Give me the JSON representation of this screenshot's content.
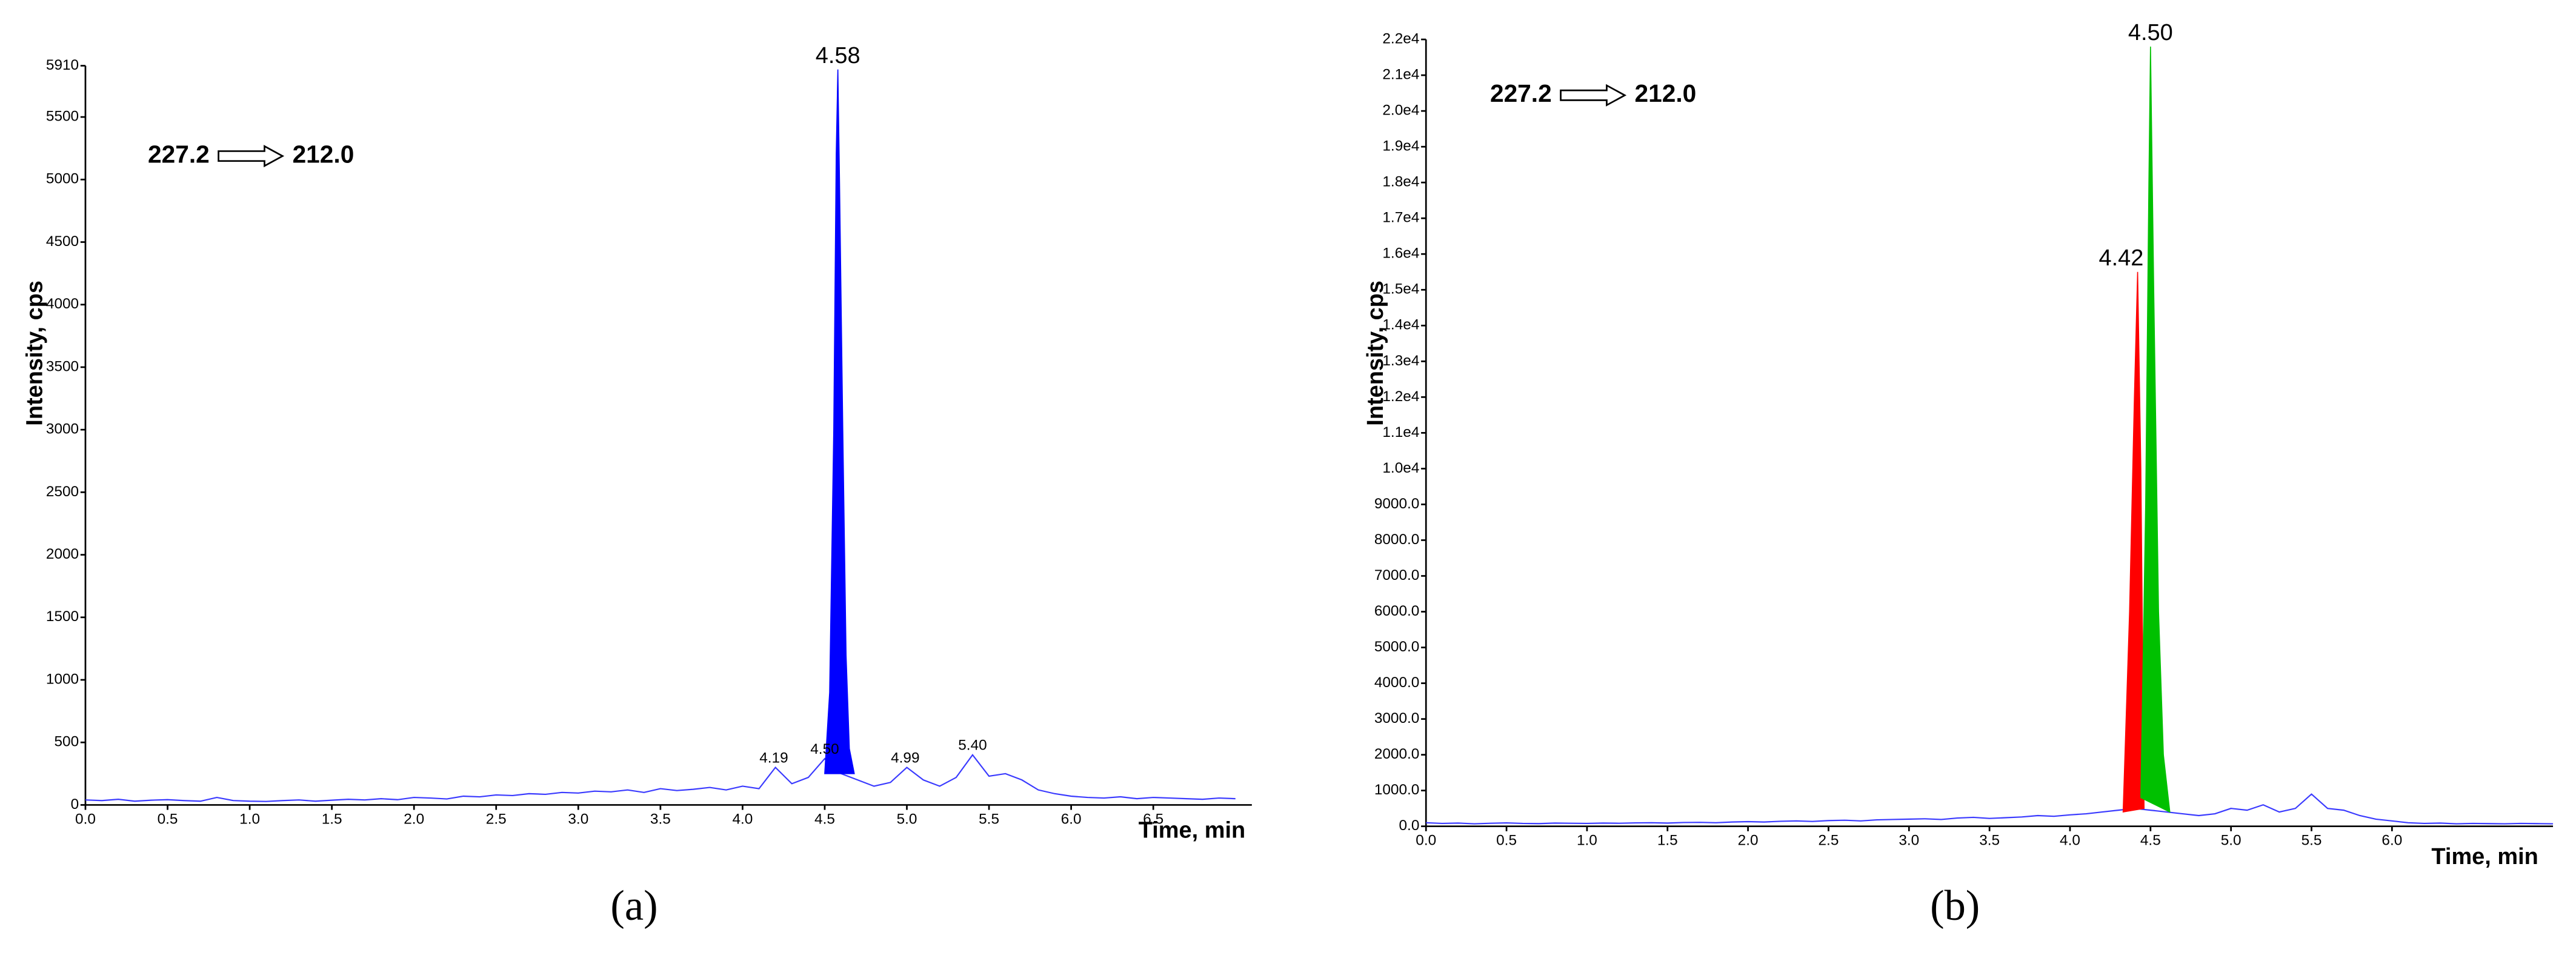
{
  "chart_data": [
    {
      "type": "line",
      "title": "(a)",
      "xlabel": "Time, min",
      "ylabel": "Intensity, cps",
      "transition": [
        "227.2",
        "212.0"
      ],
      "xlim": [
        0,
        7.1
      ],
      "ylim": [
        0,
        5910
      ],
      "xticks": [
        {
          "value": 0,
          "label": "0.0"
        },
        0.5,
        {
          "value": 1,
          "label": "1.0"
        },
        1.5,
        {
          "value": 2,
          "label": "2.0"
        },
        2.5,
        {
          "value": 3,
          "label": "3.0"
        },
        3.5,
        {
          "value": 4,
          "label": "4.0"
        },
        4.5,
        {
          "value": 5,
          "label": "5.0"
        },
        5.5,
        {
          "value": 6,
          "label": "6.0"
        },
        6.5
      ],
      "yticks": [
        0,
        500,
        1000,
        1500,
        2000,
        2500,
        3000,
        3500,
        4000,
        4500,
        5000,
        5500,
        5910
      ],
      "series": [
        {
          "color": "#3a3aff",
          "x": [
            0.0,
            0.1,
            0.2,
            0.3,
            0.4,
            0.5,
            0.6,
            0.7,
            0.8,
            0.9,
            1.0,
            1.1,
            1.2,
            1.3,
            1.4,
            1.5,
            1.6,
            1.7,
            1.8,
            1.9,
            2.0,
            2.1,
            2.2,
            2.3,
            2.4,
            2.5,
            2.6,
            2.7,
            2.8,
            2.9,
            3.0,
            3.1,
            3.2,
            3.3,
            3.4,
            3.5,
            3.6,
            3.7,
            3.8,
            3.9,
            4.0,
            4.1,
            4.2,
            4.3,
            4.4,
            4.5,
            4.6,
            4.7,
            4.8,
            4.9,
            5.0,
            5.1,
            5.2,
            5.3,
            5.4,
            5.5,
            5.6,
            5.7,
            5.8,
            5.9,
            6.0,
            6.1,
            6.2,
            6.3,
            6.4,
            6.5,
            6.6,
            6.7,
            6.8,
            6.9,
            7.0
          ],
          "values": [
            40,
            35,
            45,
            30,
            38,
            42,
            35,
            30,
            60,
            35,
            30,
            28,
            35,
            40,
            30,
            38,
            45,
            40,
            50,
            42,
            60,
            55,
            48,
            70,
            65,
            80,
            75,
            90,
            85,
            100,
            95,
            110,
            105,
            120,
            100,
            130,
            115,
            125,
            140,
            120,
            150,
            130,
            300,
            170,
            220,
            370,
            250,
            200,
            150,
            180,
            300,
            200,
            150,
            220,
            400,
            230,
            250,
            200,
            120,
            90,
            70,
            60,
            55,
            65,
            50,
            60,
            55,
            50,
            45,
            55,
            50
          ]
        },
        {
          "color": "#0000ff",
          "fill": true,
          "x": [
            4.5,
            4.53,
            4.555,
            4.57,
            4.58,
            4.59,
            4.61,
            4.63,
            4.65,
            4.68
          ],
          "values": [
            250,
            900,
            3000,
            5200,
            5880,
            5000,
            3000,
            1200,
            450,
            250
          ]
        }
      ],
      "annotations": [
        {
          "text": "4.58",
          "x": 4.58,
          "y": 5880
        },
        {
          "text": "4.19",
          "x": 4.19,
          "y": 300
        },
        {
          "text": "4.50",
          "x": 4.5,
          "y": 370
        },
        {
          "text": "4.99",
          "x": 4.99,
          "y": 300
        },
        {
          "text": "5.40",
          "x": 5.4,
          "y": 400
        }
      ]
    },
    {
      "type": "line",
      "title": "(b)",
      "xlabel": "Time, min",
      "ylabel": "Intensity, cps",
      "transition": [
        "227.2",
        "212.0"
      ],
      "xlim": [
        0,
        7.0
      ],
      "ylim": [
        0,
        22000
      ],
      "xticks": [
        {
          "value": 0,
          "label": "0.0"
        },
        0.5,
        {
          "value": 1,
          "label": "1.0"
        },
        1.5,
        {
          "value": 2,
          "label": "2.0"
        },
        2.5,
        {
          "value": 3,
          "label": "3.0"
        },
        3.5,
        {
          "value": 4,
          "label": "4.0"
        },
        4.5,
        {
          "value": 5,
          "label": "5.0"
        },
        5.5,
        {
          "value": 6,
          "label": "6.0"
        }
      ],
      "yticks": [
        {
          "value": 0,
          "label": "0.0"
        },
        {
          "value": 1000,
          "label": "1000.0"
        },
        {
          "value": 2000,
          "label": "2000.0"
        },
        {
          "value": 3000,
          "label": "3000.0"
        },
        {
          "value": 4000,
          "label": "4000.0"
        },
        {
          "value": 5000,
          "label": "5000.0"
        },
        {
          "value": 6000,
          "label": "6000.0"
        },
        {
          "value": 7000,
          "label": "7000.0"
        },
        {
          "value": 8000,
          "label": "8000.0"
        },
        {
          "value": 9000,
          "label": "9000.0"
        },
        {
          "value": 10000,
          "label": "1.0e4"
        },
        {
          "value": 11000,
          "label": "1.1e4"
        },
        {
          "value": 12000,
          "label": "1.2e4"
        },
        {
          "value": 13000,
          "label": "1.3e4"
        },
        {
          "value": 14000,
          "label": "1.4e4"
        },
        {
          "value": 15000,
          "label": "1.5e4"
        },
        {
          "value": 16000,
          "label": "1.6e4"
        },
        {
          "value": 17000,
          "label": "1.7e4"
        },
        {
          "value": 18000,
          "label": "1.8e4"
        },
        {
          "value": 19000,
          "label": "1.9e4"
        },
        {
          "value": 20000,
          "label": "2.0e4"
        },
        {
          "value": 21000,
          "label": "2.1e4"
        },
        {
          "value": 22000,
          "label": "2.2e4"
        }
      ],
      "series": [
        {
          "color": "#3a3aff",
          "x": [
            0.0,
            0.1,
            0.2,
            0.3,
            0.4,
            0.5,
            0.6,
            0.7,
            0.8,
            0.9,
            1.0,
            1.1,
            1.2,
            1.3,
            1.4,
            1.5,
            1.6,
            1.7,
            1.8,
            1.9,
            2.0,
            2.1,
            2.2,
            2.3,
            2.4,
            2.5,
            2.6,
            2.7,
            2.8,
            2.9,
            3.0,
            3.1,
            3.2,
            3.3,
            3.4,
            3.5,
            3.6,
            3.7,
            3.8,
            3.9,
            4.0,
            4.1,
            4.2,
            4.3,
            4.4,
            4.5,
            4.6,
            4.7,
            4.8,
            4.9,
            5.0,
            5.1,
            5.2,
            5.3,
            5.4,
            5.5,
            5.6,
            5.7,
            5.8,
            5.9,
            6.0,
            6.1,
            6.2,
            6.3,
            6.4,
            6.5,
            6.6,
            6.7,
            6.8,
            6.9,
            7.0
          ],
          "values": [
            100,
            80,
            90,
            70,
            85,
            95,
            80,
            75,
            90,
            85,
            80,
            90,
            85,
            95,
            100,
            90,
            105,
            110,
            100,
            120,
            130,
            120,
            140,
            150,
            135,
            160,
            170,
            150,
            180,
            190,
            200,
            210,
            190,
            230,
            250,
            220,
            240,
            260,
            300,
            280,
            320,
            350,
            400,
            450,
            500,
            450,
            400,
            350,
            300,
            350,
            500,
            450,
            600,
            400,
            500,
            900,
            500,
            450,
            300,
            200,
            150,
            100,
            80,
            90,
            70,
            80,
            75,
            70,
            80,
            75,
            70
          ]
        },
        {
          "color": "#ff0000",
          "fill": true,
          "x": [
            4.33,
            4.37,
            4.4,
            4.42,
            4.44,
            4.46
          ],
          "values": [
            400,
            6000,
            12000,
            15500,
            10000,
            500
          ]
        },
        {
          "color": "#00c000",
          "fill": true,
          "x": [
            4.44,
            4.47,
            4.49,
            4.5,
            4.52,
            4.55,
            4.58,
            4.62
          ],
          "values": [
            800,
            9000,
            18000,
            21800,
            15000,
            6000,
            2000,
            400
          ]
        }
      ],
      "annotations": [
        {
          "text": "4.42",
          "x": 4.42,
          "y": 15500
        },
        {
          "text": "4.50",
          "x": 4.5,
          "y": 21800
        }
      ]
    }
  ]
}
